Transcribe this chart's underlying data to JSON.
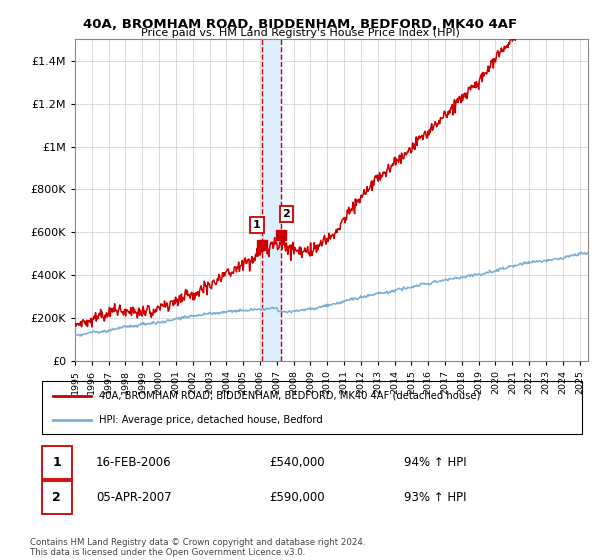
{
  "title": "40A, BROMHAM ROAD, BIDDENHAM, BEDFORD, MK40 4AF",
  "subtitle": "Price paid vs. HM Land Registry's House Price Index (HPI)",
  "legend_line1": "40A, BROMHAM ROAD, BIDDENHAM, BEDFORD, MK40 4AF (detached house)",
  "legend_line2": "HPI: Average price, detached house, Bedford",
  "footer": "Contains HM Land Registry data © Crown copyright and database right 2024.\nThis data is licensed under the Open Government Licence v3.0.",
  "sale1_date": "16-FEB-2006",
  "sale1_price": "£540,000",
  "sale1_hpi": "94% ↑ HPI",
  "sale1_year": 2006.12,
  "sale1_value": 540000,
  "sale2_date": "05-APR-2007",
  "sale2_price": "£590,000",
  "sale2_hpi": "93% ↑ HPI",
  "sale2_year": 2007.26,
  "sale2_value": 590000,
  "red_line_color": "#cc0000",
  "blue_line_color": "#7bafd4",
  "highlight_color": "#ddeeff",
  "highlight_border": "#cc0000",
  "grid_color": "#cccccc",
  "background_color": "#ffffff",
  "ylim": [
    0,
    1500000
  ],
  "xlim_start": 1995.0,
  "xlim_end": 2025.5
}
